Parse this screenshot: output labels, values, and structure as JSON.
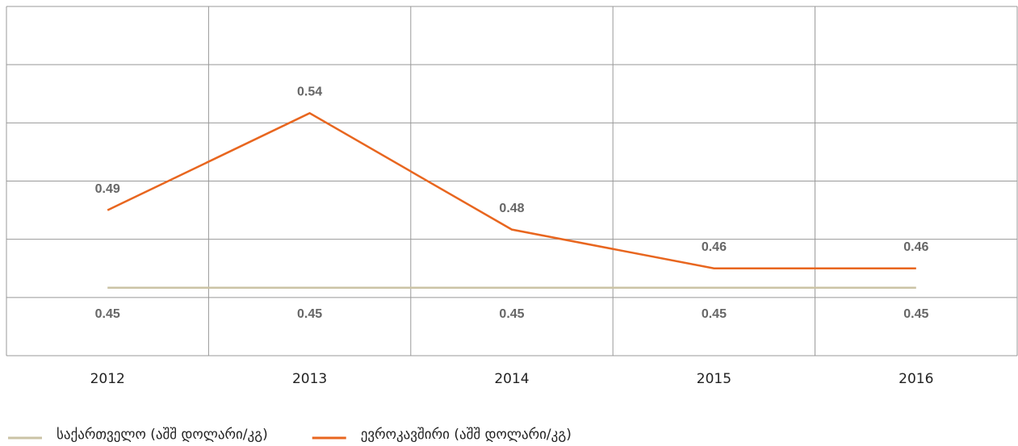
{
  "chart_data": {
    "type": "line",
    "categories": [
      "2012",
      "2013",
      "2014",
      "2015",
      "2016"
    ],
    "series": [
      {
        "name": "საქართველო (აშშ დოლარი/კგ)",
        "color": "#cbc3a5",
        "values": [
          0.45,
          0.45,
          0.45,
          0.45,
          0.45
        ]
      },
      {
        "name": "ევროკავშირი (აშშ დოლარი/კგ)",
        "color": "#e8661f",
        "values": [
          0.49,
          0.54,
          0.48,
          0.46,
          0.46
        ]
      }
    ],
    "ylim": [
      0.415,
      0.595
    ],
    "yticks": [
      0.415,
      0.445,
      0.475,
      0.505,
      0.535,
      0.565,
      0.595
    ],
    "grid": true,
    "legend": "bottom-left"
  }
}
